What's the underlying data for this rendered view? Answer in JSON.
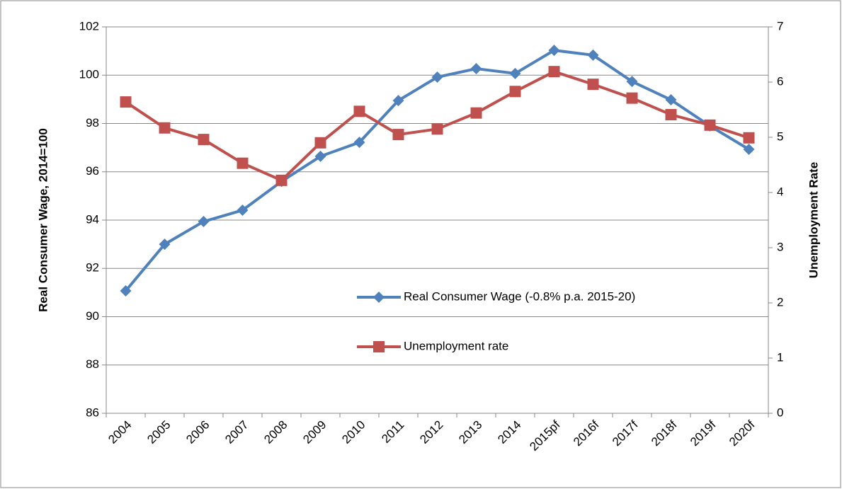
{
  "chart_data": {
    "type": "line",
    "categories": [
      "2004",
      "2005",
      "2006",
      "2007",
      "2008",
      "2009",
      "2010",
      "2011",
      "2012",
      "2013",
      "2014",
      "2015pf",
      "2016f",
      "2017f",
      "2018f",
      "2019f",
      "2020f"
    ],
    "y_label": "Real Consumer Wage, 2014=100",
    "y2_label": "Unemployment Rate",
    "ylim": [
      86,
      102
    ],
    "yticks": [
      86,
      88,
      90,
      92,
      94,
      96,
      98,
      100,
      102
    ],
    "y2lim": [
      0,
      7
    ],
    "y2ticks": [
      0,
      1,
      2,
      3,
      4,
      5,
      6,
      7
    ],
    "grid": true,
    "series": [
      {
        "name": "Real Consumer Wage (-0.8% p.a. 2015-20)",
        "color": "#4f81bd",
        "marker": "diamond",
        "values": [
          91.07,
          93.0,
          93.94,
          94.41,
          95.6,
          96.64,
          97.22,
          98.95,
          99.92,
          100.27,
          100.07,
          101.03,
          100.83,
          99.74,
          98.98,
          97.9,
          96.93
        ]
      },
      {
        "name": "Unemployment rate",
        "color": "#c0504d",
        "marker": "square",
        "axis": "y2",
        "values": [
          5.64,
          5.17,
          4.96,
          4.53,
          4.22,
          4.9,
          5.47,
          5.05,
          5.15,
          5.44,
          5.83,
          6.19,
          5.96,
          5.71,
          5.41,
          5.22,
          4.99
        ]
      }
    ]
  }
}
